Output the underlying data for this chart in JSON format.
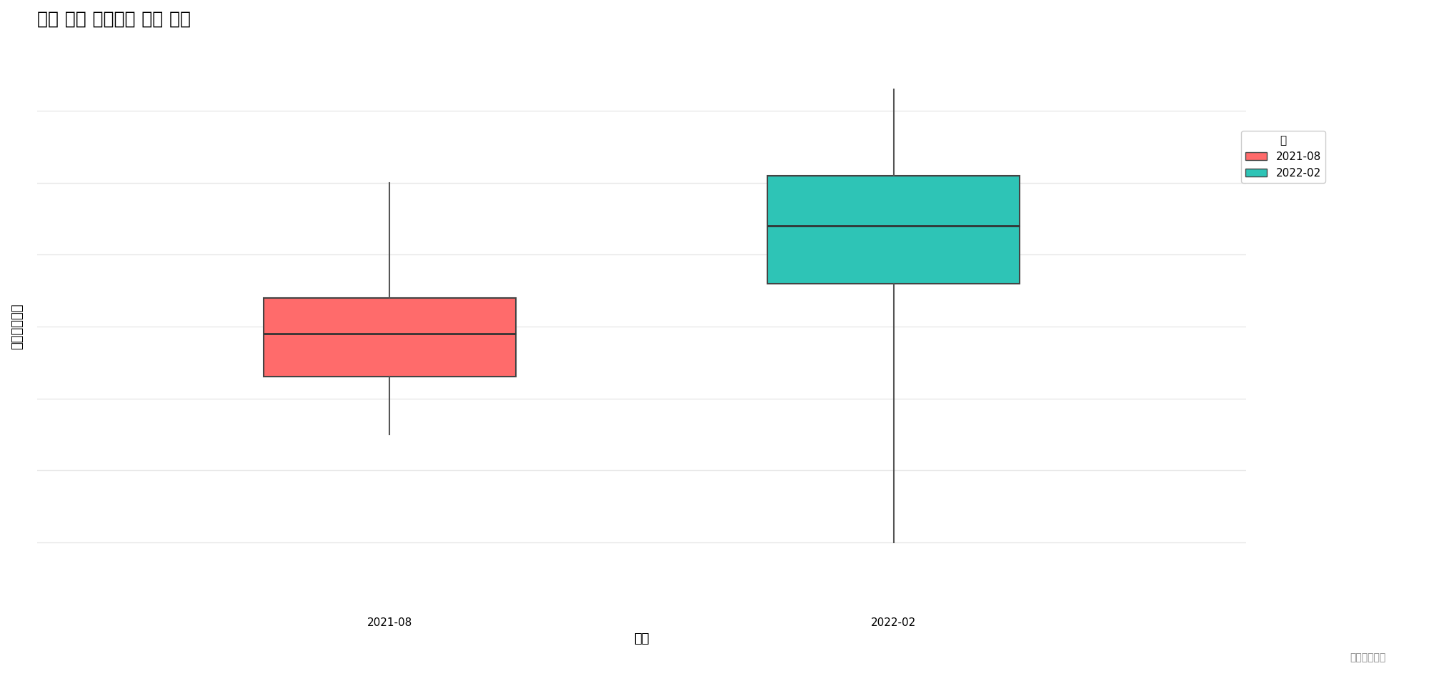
{
  "title": "일별 평균 구매금액 분포 비교",
  "xlabel": "날짜",
  "ylabel": "평균구매금액",
  "credit": "데이터라이즈",
  "legend_title": "월",
  "categories": [
    "2021-08",
    "2022-02"
  ],
  "box_data": {
    "2021-08": {
      "whisker_low": 350,
      "q1": 430,
      "median": 490,
      "q3": 540,
      "whisker_high": 700,
      "color": "#FF6B6B"
    },
    "2022-02": {
      "whisker_low": 200,
      "q1": 560,
      "median": 640,
      "q3": 710,
      "whisker_high": 830,
      "color": "#2EC4B6"
    }
  },
  "ylim": [
    100,
    900
  ],
  "background_color": "#FFFFFF",
  "grid_color": "#E8E8E8",
  "title_fontsize": 18,
  "label_fontsize": 13,
  "tick_fontsize": 11
}
